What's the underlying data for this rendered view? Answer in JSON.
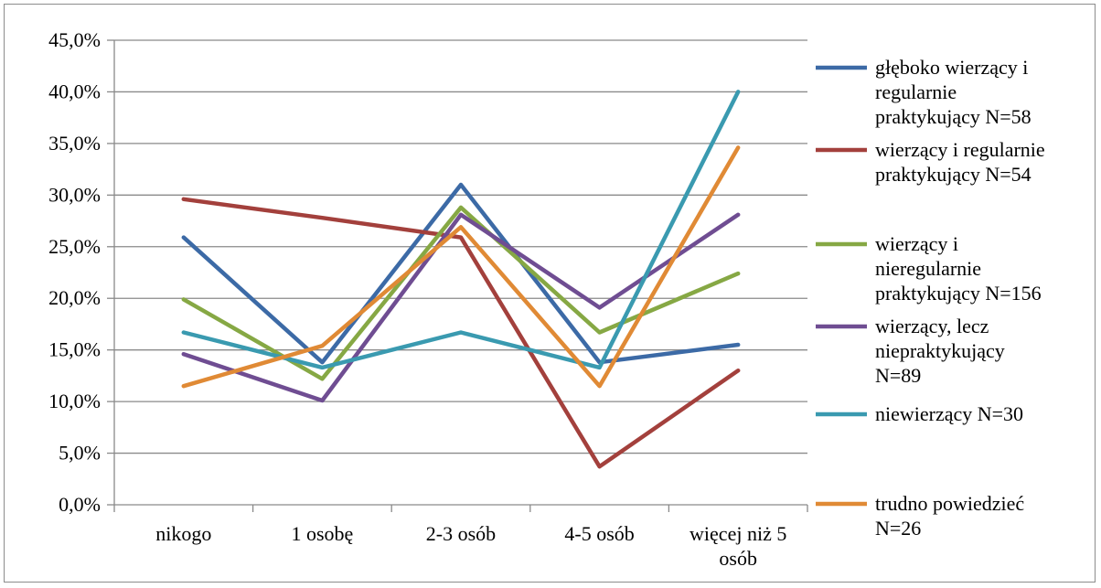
{
  "chart_data": {
    "type": "line",
    "title": "",
    "xlabel": "",
    "ylabel": "",
    "categories": [
      "nikogo",
      "1 osobę",
      "2-3 osób",
      "4-5 osób",
      "więcej niż 5 osób"
    ],
    "category_lines": [
      [
        "nikogo"
      ],
      [
        "1 osobę"
      ],
      [
        "2-3 osób"
      ],
      [
        "4-5 osób"
      ],
      [
        "więcej niż 5",
        "osób"
      ]
    ],
    "ylim": [
      0,
      45
    ],
    "y_ticks": [
      0,
      5,
      10,
      15,
      20,
      25,
      30,
      35,
      40,
      45
    ],
    "y_tick_labels": [
      "0,0%",
      "5,0%",
      "10,0%",
      "15,0%",
      "20,0%",
      "25,0%",
      "30,0%",
      "35,0%",
      "40,0%",
      "45,0%"
    ],
    "grid": true,
    "legend_position": "right",
    "series": [
      {
        "name": "głęboko wierzący i regularnie praktykujący N=58",
        "legend_lines": [
          "głęboko wierzący i",
          "regularnie",
          "praktykujący N=58"
        ],
        "color": "#3C6AA6",
        "values": [
          25.9,
          13.8,
          31.0,
          13.8,
          15.5
        ]
      },
      {
        "name": "wierzący i regularnie praktykujący N=54",
        "legend_lines": [
          "wierzący i regularnie",
          "praktykujący N=54"
        ],
        "color": "#A3403C",
        "values": [
          29.6,
          27.8,
          25.9,
          3.7,
          13.0
        ]
      },
      {
        "name": "wierzący i nieregularnie praktykujący N=156",
        "legend_lines": [
          "wierzący i",
          "nieregularnie",
          "praktykujący N=156"
        ],
        "color": "#86A844",
        "values": [
          19.9,
          12.2,
          28.8,
          16.7,
          22.4
        ]
      },
      {
        "name": "wierzący, lecz niepraktykujący N=89",
        "legend_lines": [
          "wierzący, lecz",
          "niepraktykujący",
          "N=89"
        ],
        "color": "#6F4D92",
        "values": [
          14.6,
          10.1,
          28.1,
          19.1,
          28.1
        ]
      },
      {
        "name": "niewierzący N=30",
        "legend_lines": [
          "niewierzący N=30"
        ],
        "color": "#3A9AB0",
        "values": [
          16.7,
          13.3,
          16.7,
          13.3,
          40.0
        ]
      },
      {
        "name": "trudno powiedzieć N=26",
        "legend_lines": [
          "trudno powiedzieć",
          "N=26"
        ],
        "color": "#E08A35",
        "values": [
          11.5,
          15.4,
          26.9,
          11.5,
          34.6
        ]
      }
    ]
  }
}
